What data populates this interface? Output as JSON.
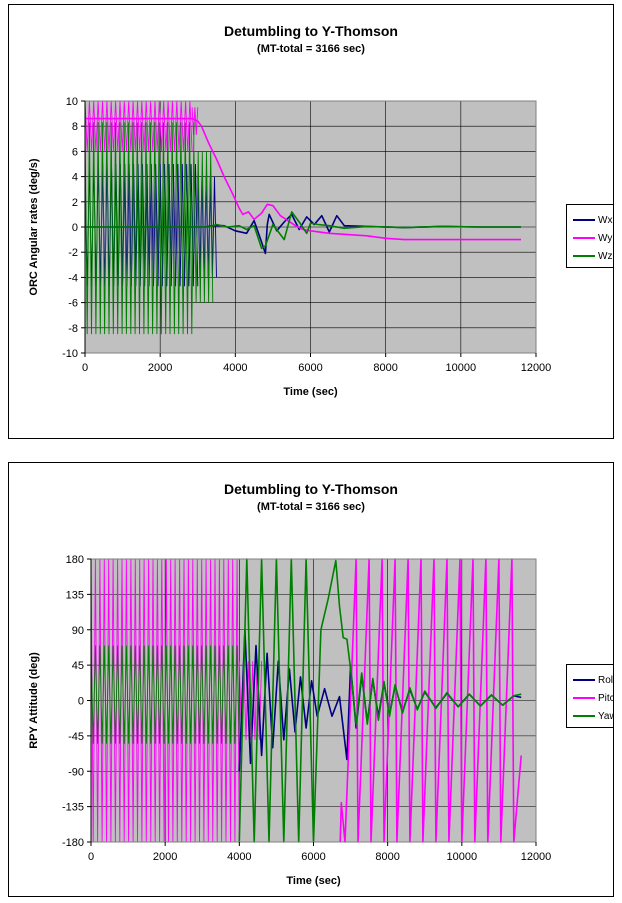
{
  "chart_data": [
    {
      "type": "line",
      "title": "Detumbling to Y-Thomson",
      "subtitle": "(MT-total = 3166 sec)",
      "xlabel": "Time (sec)",
      "ylabel": "ORC Angular rates (deg/s)",
      "xlim": [
        0,
        12000
      ],
      "ylim": [
        -10,
        10
      ],
      "x_ticks": [
        "0",
        "2000",
        "4000",
        "6000",
        "8000",
        "10000",
        "12000"
      ],
      "y_ticks": [
        "-10",
        "-8",
        "-6",
        "-4",
        "-2",
        "0",
        "2",
        "4",
        "6",
        "8",
        "10"
      ],
      "grid": true,
      "legend_position": "right",
      "plot_background": "#c0c0c0",
      "series": [
        {
          "name": "Wx",
          "color": "#000080",
          "x": [
            0,
            3200,
            3400,
            3700,
            4000,
            4300,
            4500,
            4700,
            4800,
            4850,
            4900,
            5100,
            5300,
            5500,
            5700,
            5900,
            6100,
            6300,
            6500,
            6700,
            6900,
            7500,
            8500,
            9500,
            10500,
            11600
          ],
          "y": [
            0,
            0,
            0.1,
            0.1,
            -0.3,
            -0.5,
            0.5,
            -1.2,
            -2.1,
            0.2,
            1.0,
            -0.3,
            0.4,
            1.0,
            -0.2,
            0.8,
            0.2,
            0.9,
            -0.4,
            0.9,
            0.1,
            0.05,
            -0.05,
            0.05,
            0.0,
            0.0
          ],
          "envelope": [
            {
              "x": [
                0,
                3000
              ],
              "min": -4.7,
              "max": 5.0
            },
            {
              "x": [
                3000,
                3500
              ],
              "min": -4.0,
              "max": 4.0
            }
          ]
        },
        {
          "name": "Wy",
          "color": "#ff00ff",
          "x": [
            0,
            2850,
            3000,
            3100,
            3300,
            3500,
            3700,
            3900,
            4100,
            4200,
            4350,
            4500,
            4700,
            4850,
            5000,
            5200,
            5400,
            5600,
            5800,
            6000,
            6500,
            7000,
            7500,
            8000,
            8500,
            9000,
            10000,
            11000,
            11600
          ],
          "y": [
            8.6,
            8.6,
            8.4,
            8.0,
            6.6,
            5.4,
            4.0,
            2.8,
            1.5,
            1.0,
            1.2,
            0.6,
            1.1,
            1.8,
            1.7,
            0.9,
            0.5,
            0.1,
            -0.2,
            -0.3,
            -0.5,
            -0.6,
            -0.7,
            -0.9,
            -1.0,
            -1.0,
            -1.0,
            -1.0,
            -1.0
          ],
          "envelope": [
            {
              "x": [
                0,
                2850
              ],
              "min": 6.0,
              "max": 10.0
            },
            {
              "x": [
                2850,
                3000
              ],
              "min": 7.3,
              "max": 9.5
            }
          ]
        },
        {
          "name": "Wz",
          "color": "#008000",
          "x": [
            0,
            3300,
            3500,
            3800,
            4100,
            4300,
            4500,
            4700,
            4800,
            5000,
            5300,
            5500,
            5700,
            5900,
            6000,
            6200,
            6500,
            6900,
            7500,
            8500,
            9500,
            10500,
            11600
          ],
          "y": [
            0,
            0,
            0.2,
            0.0,
            0.1,
            -0.2,
            0.1,
            -1.7,
            -1.5,
            0.2,
            -1.0,
            1.2,
            0.4,
            -0.5,
            0.3,
            0.2,
            0.1,
            -0.1,
            0.05,
            -0.05,
            0.05,
            0.0,
            0.0
          ],
          "envelope": [
            {
              "x": [
                0,
                2900
              ],
              "min": -8.5,
              "max": 8.3
            },
            {
              "x": [
                2900,
                3400
              ],
              "min": -6.0,
              "max": 6.0
            }
          ]
        }
      ]
    },
    {
      "type": "line",
      "title": "Detumbling to Y-Thomson",
      "subtitle": "(MT-total = 3166 sec)",
      "xlabel": "Time (sec)",
      "ylabel": "RPY Attitude (deg)",
      "xlim": [
        0,
        12000
      ],
      "ylim": [
        -180,
        180
      ],
      "x_ticks": [
        "0",
        "2000",
        "4000",
        "6000",
        "8000",
        "10000",
        "12000"
      ],
      "y_ticks": [
        "-180",
        "-135",
        "-90",
        "-45",
        "0",
        "45",
        "90",
        "135",
        "180"
      ],
      "grid": true,
      "legend_position": "right",
      "plot_background": "#c0c0c0",
      "series": [
        {
          "name": "Roll",
          "color": "#000080",
          "x": [
            4000,
            4150,
            4300,
            4450,
            4600,
            4750,
            4900,
            5050,
            5200,
            5350,
            5500,
            5650,
            5800,
            5950,
            6100,
            6300,
            6500,
            6700,
            6900,
            7000,
            7150,
            7300,
            7450,
            7600,
            7750,
            7900,
            8050,
            8200,
            8400,
            8600,
            8800,
            9000,
            9300,
            9600,
            9900,
            10200,
            10500,
            10800,
            11100,
            11400,
            11600
          ],
          "y": [
            -90,
            90,
            -80,
            70,
            -70,
            60,
            -60,
            50,
            -50,
            40,
            -40,
            30,
            -35,
            25,
            -20,
            15,
            -20,
            5,
            -75,
            45,
            -35,
            32,
            -27,
            26,
            -20,
            22,
            -17,
            18,
            -14,
            14,
            -11,
            11,
            -9,
            9,
            -8,
            8,
            -7,
            7,
            -6,
            6,
            4
          ]
        },
        {
          "name": "Pitch",
          "color": "#ff00ff",
          "x": [
            6720,
            6750,
            6850,
            7150,
            7200,
            7500,
            7550,
            7850,
            7900,
            8200,
            8250,
            8550,
            8600,
            8900,
            8950,
            9250,
            9300,
            9600,
            9650,
            9950,
            10000,
            10300,
            10350,
            10650,
            10700,
            11000,
            11050,
            11350,
            11400,
            11600
          ],
          "y": [
            -180,
            -130,
            -180,
            180,
            -180,
            180,
            -180,
            180,
            -180,
            180,
            -180,
            180,
            -180,
            180,
            -180,
            180,
            -180,
            180,
            -180,
            180,
            -180,
            180,
            -180,
            180,
            -180,
            180,
            -180,
            180,
            -180,
            -70
          ],
          "envelope": [
            {
              "x": [
                0,
                4000
              ],
              "min": -180,
              "max": 180
            },
            {
              "x": [
                4000,
                4600
              ],
              "min": -50,
              "max": 50
            }
          ]
        },
        {
          "name": "Yaw",
          "color": "#008000",
          "x": [
            4000,
            4200,
            4400,
            4600,
            4800,
            5000,
            5200,
            5400,
            5600,
            5800,
            6000,
            6200,
            6400,
            6600,
            6700,
            6800,
            6900,
            7000,
            7150,
            7300,
            7450,
            7600,
            7750,
            7900,
            8050,
            8200,
            8400,
            8600,
            8800,
            9000,
            9300,
            9600,
            9900,
            10200,
            10500,
            10800,
            11100,
            11400,
            11600
          ],
          "y": [
            -180,
            180,
            -180,
            180,
            -180,
            180,
            -180,
            180,
            -180,
            180,
            -180,
            90,
            130,
            178,
            120,
            80,
            78,
            40,
            -30,
            35,
            -30,
            28,
            -25,
            24,
            -20,
            20,
            -16,
            16,
            -12,
            12,
            -10,
            10,
            -8,
            8,
            -7,
            7,
            -6,
            6,
            8
          ],
          "envelope": [
            {
              "x": [
                0,
                4000
              ],
              "min": -55,
              "max": 70
            }
          ]
        }
      ]
    }
  ]
}
